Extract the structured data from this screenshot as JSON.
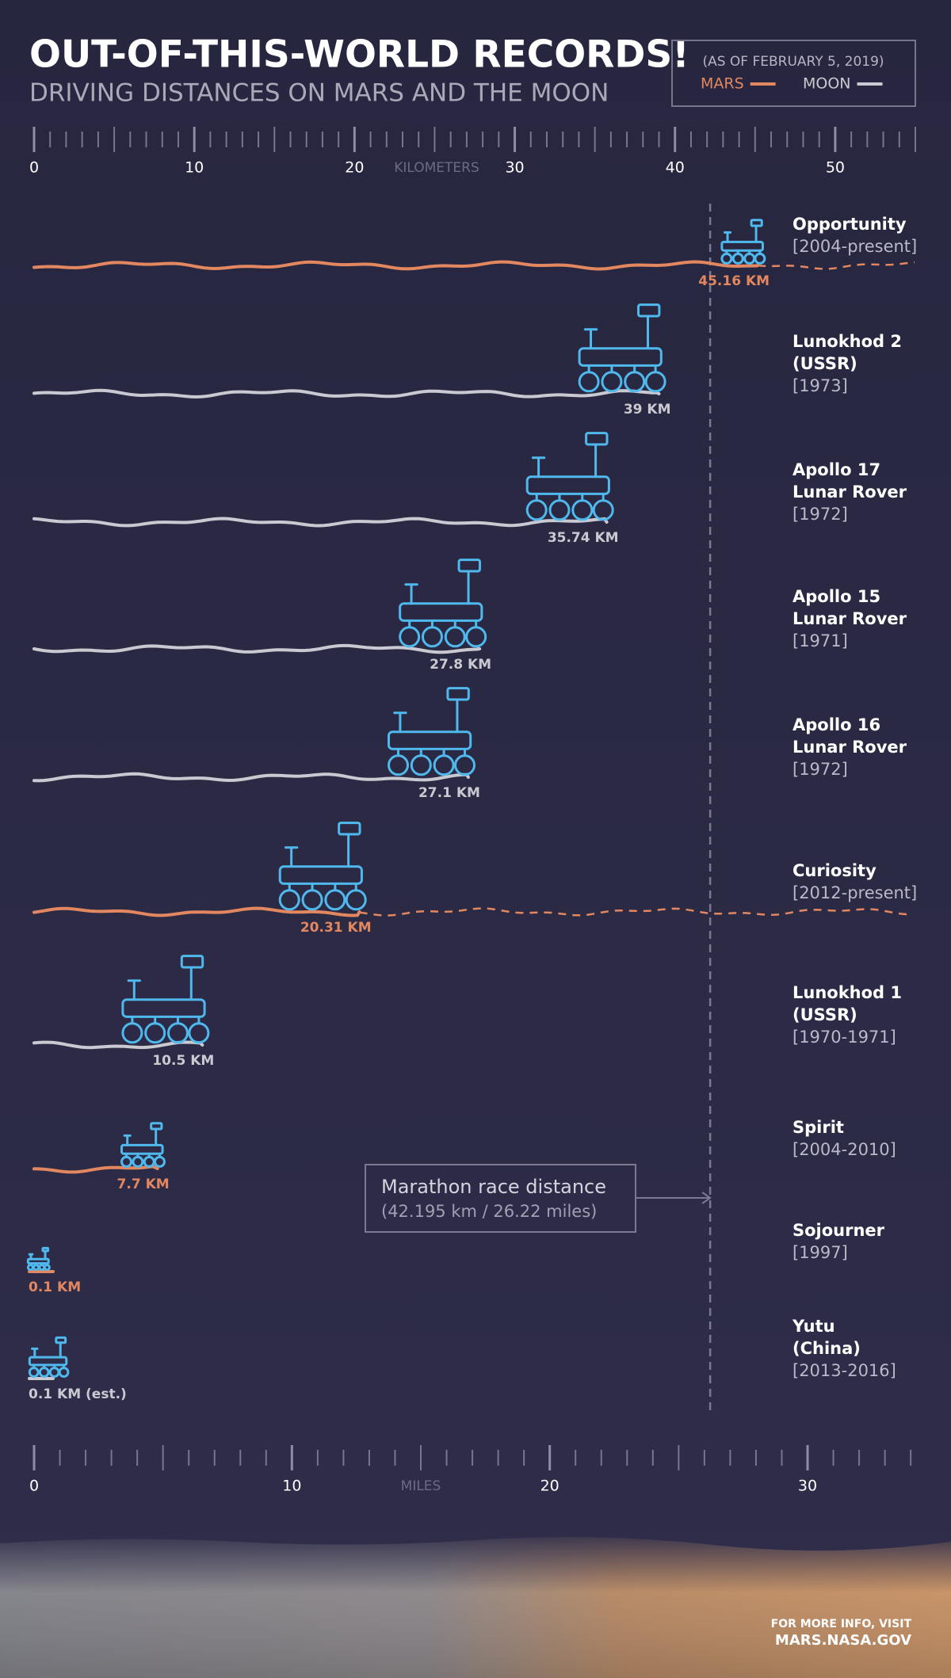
{
  "chart_data": {
    "type": "track",
    "title": "OUT-OF-THIS-WORLD RECORDS!",
    "subtitle": "DRIVING DISTANCES ON MARS AND THE MOON",
    "legend": {
      "note": "(AS OF FEBRUARY 5, 2019)",
      "entries": [
        {
          "name": "MARS",
          "color": "#e2875f"
        },
        {
          "name": "MOON",
          "color": "#c9c9d1"
        }
      ]
    },
    "xlabel": "KILOMETERS",
    "xlim": [
      0,
      55
    ],
    "xticks": [
      0,
      10,
      20,
      30,
      40,
      50
    ],
    "x2label": "MILES",
    "x2lim": [
      0,
      34.18
    ],
    "x2ticks": [
      0,
      10,
      20,
      30
    ],
    "series": [
      {
        "name_lines": [
          "Opportunity"
        ],
        "years": "[2004-present]",
        "value": 45.16,
        "value_label": "45.16 KM",
        "color": "#e2875f",
        "active": true
      },
      {
        "name_lines": [
          "Lunokhod 2",
          "(USSR)"
        ],
        "years": "[1973]",
        "value": 39,
        "value_label": "39 KM",
        "color": "#c9c9d1"
      },
      {
        "name_lines": [
          "Apollo 17",
          "Lunar Rover"
        ],
        "years": "[1972]",
        "value": 35.74,
        "value_label": "35.74 KM",
        "color": "#c9c9d1"
      },
      {
        "name_lines": [
          "Apollo 15",
          "Lunar Rover"
        ],
        "years": "[1971]",
        "value": 27.8,
        "value_label": "27.8 KM",
        "color": "#c9c9d1"
      },
      {
        "name_lines": [
          "Apollo 16",
          "Lunar Rover"
        ],
        "years": "[1972]",
        "value": 27.1,
        "value_label": "27.1 KM",
        "color": "#c9c9d1"
      },
      {
        "name_lines": [
          "Curiosity"
        ],
        "years": "[2012-present]",
        "value": 20.31,
        "value_label": "20.31 KM",
        "color": "#e2875f",
        "active": true
      },
      {
        "name_lines": [
          "Lunokhod 1",
          "(USSR)"
        ],
        "years": "[1970-1971]",
        "value": 10.5,
        "value_label": "10.5 KM",
        "color": "#c9c9d1"
      },
      {
        "name_lines": [
          "Spirit"
        ],
        "years": "[2004-2010]",
        "value": 7.7,
        "value_label": "7.7 KM",
        "color": "#e2875f"
      },
      {
        "name_lines": [
          "Sojourner"
        ],
        "years": "[1997]",
        "value": 0.1,
        "value_label": "0.1 KM",
        "color": "#e2875f"
      },
      {
        "name_lines": [
          "Yutu",
          "(China)"
        ],
        "years": "[2013-2016]",
        "value": 0.1,
        "value_label": "0.1 KM (est.)",
        "color": "#c9c9d1"
      }
    ],
    "annotation": {
      "lines": [
        "Marathon race distance",
        "(42.195 km / 26.22 miles)"
      ],
      "value": 42.195
    },
    "footer": [
      "FOR MORE INFO, VISIT",
      "MARS.NASA.GOV"
    ]
  }
}
